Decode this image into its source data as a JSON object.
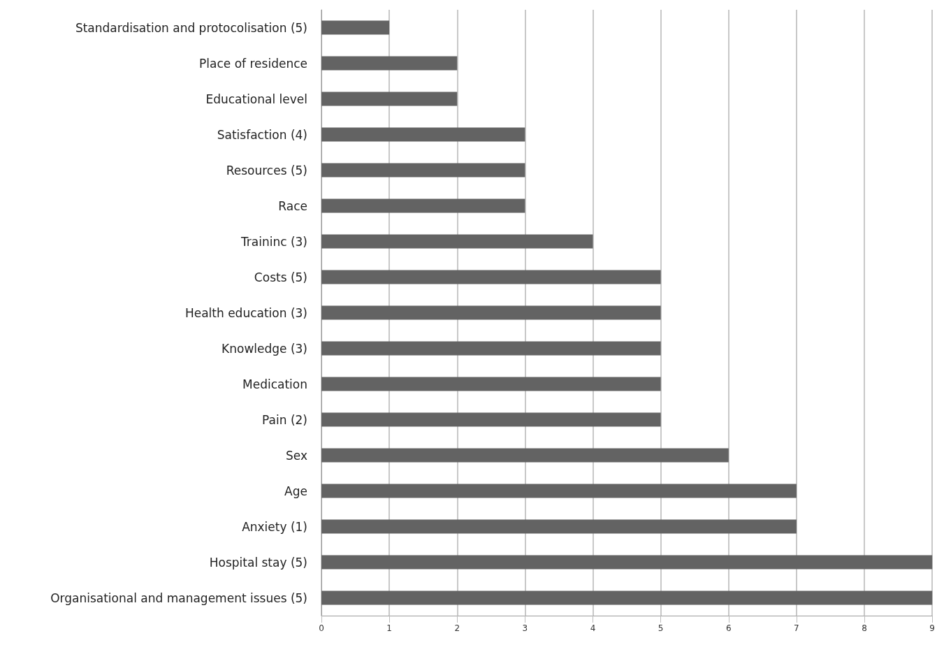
{
  "chart_data": {
    "type": "bar",
    "orientation": "horizontal",
    "categories": [
      "Standardisation and protocolisation (5)",
      "Place of residence",
      "Educational level",
      "Satisfaction (4)",
      "Resources (5)",
      "Race",
      "Traininc (3)",
      "Costs (5)",
      "Health education (3)",
      "Knowledge (3)",
      "Medication",
      "Pain (2)",
      "Sex",
      "Age",
      "Anxiety (1)",
      "Hospital stay (5)",
      "Organisational and management issues (5)"
    ],
    "values": [
      1,
      2,
      2,
      3,
      3,
      3,
      4,
      5,
      5,
      5,
      5,
      5,
      6,
      7,
      7,
      9,
      9
    ],
    "color": "#636363",
    "xlim": [
      0,
      9
    ],
    "xticks": [
      0,
      1,
      2,
      3,
      4,
      5,
      6,
      7,
      8,
      9
    ],
    "grid": "x"
  }
}
